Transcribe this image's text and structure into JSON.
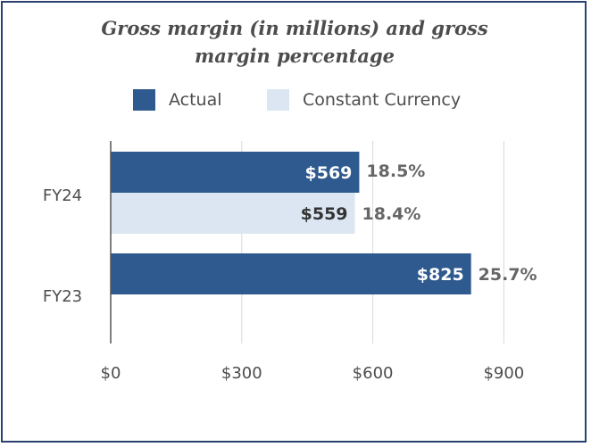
{
  "colors": {
    "actual": "#2f5a8f",
    "constant": "#dce6f2",
    "grid": "#d9d9d9",
    "axis": "#555555"
  },
  "chart_data": {
    "type": "bar",
    "orientation": "horizontal",
    "title": "Gross margin (in millions) and gross margin percentage",
    "title_lines": [
      "Gross margin (in millions) and gross",
      "margin percentage"
    ],
    "categories": [
      "FY24",
      "FY23"
    ],
    "series": [
      {
        "name": "Actual",
        "values": [
          569,
          825
        ],
        "labels": [
          "$569",
          "$825"
        ],
        "pct_labels": [
          "18.5%",
          "25.7%"
        ]
      },
      {
        "name": "Constant Currency",
        "values": [
          559,
          null
        ],
        "labels": [
          "$559",
          null
        ],
        "pct_labels": [
          "18.4%",
          null
        ]
      }
    ],
    "xlim": [
      0,
      1000
    ],
    "xticks": [
      0,
      300,
      600,
      900
    ],
    "xtick_labels": [
      "$0",
      "$300",
      "$600",
      "$900"
    ],
    "legend_position": "top",
    "grid": true
  }
}
